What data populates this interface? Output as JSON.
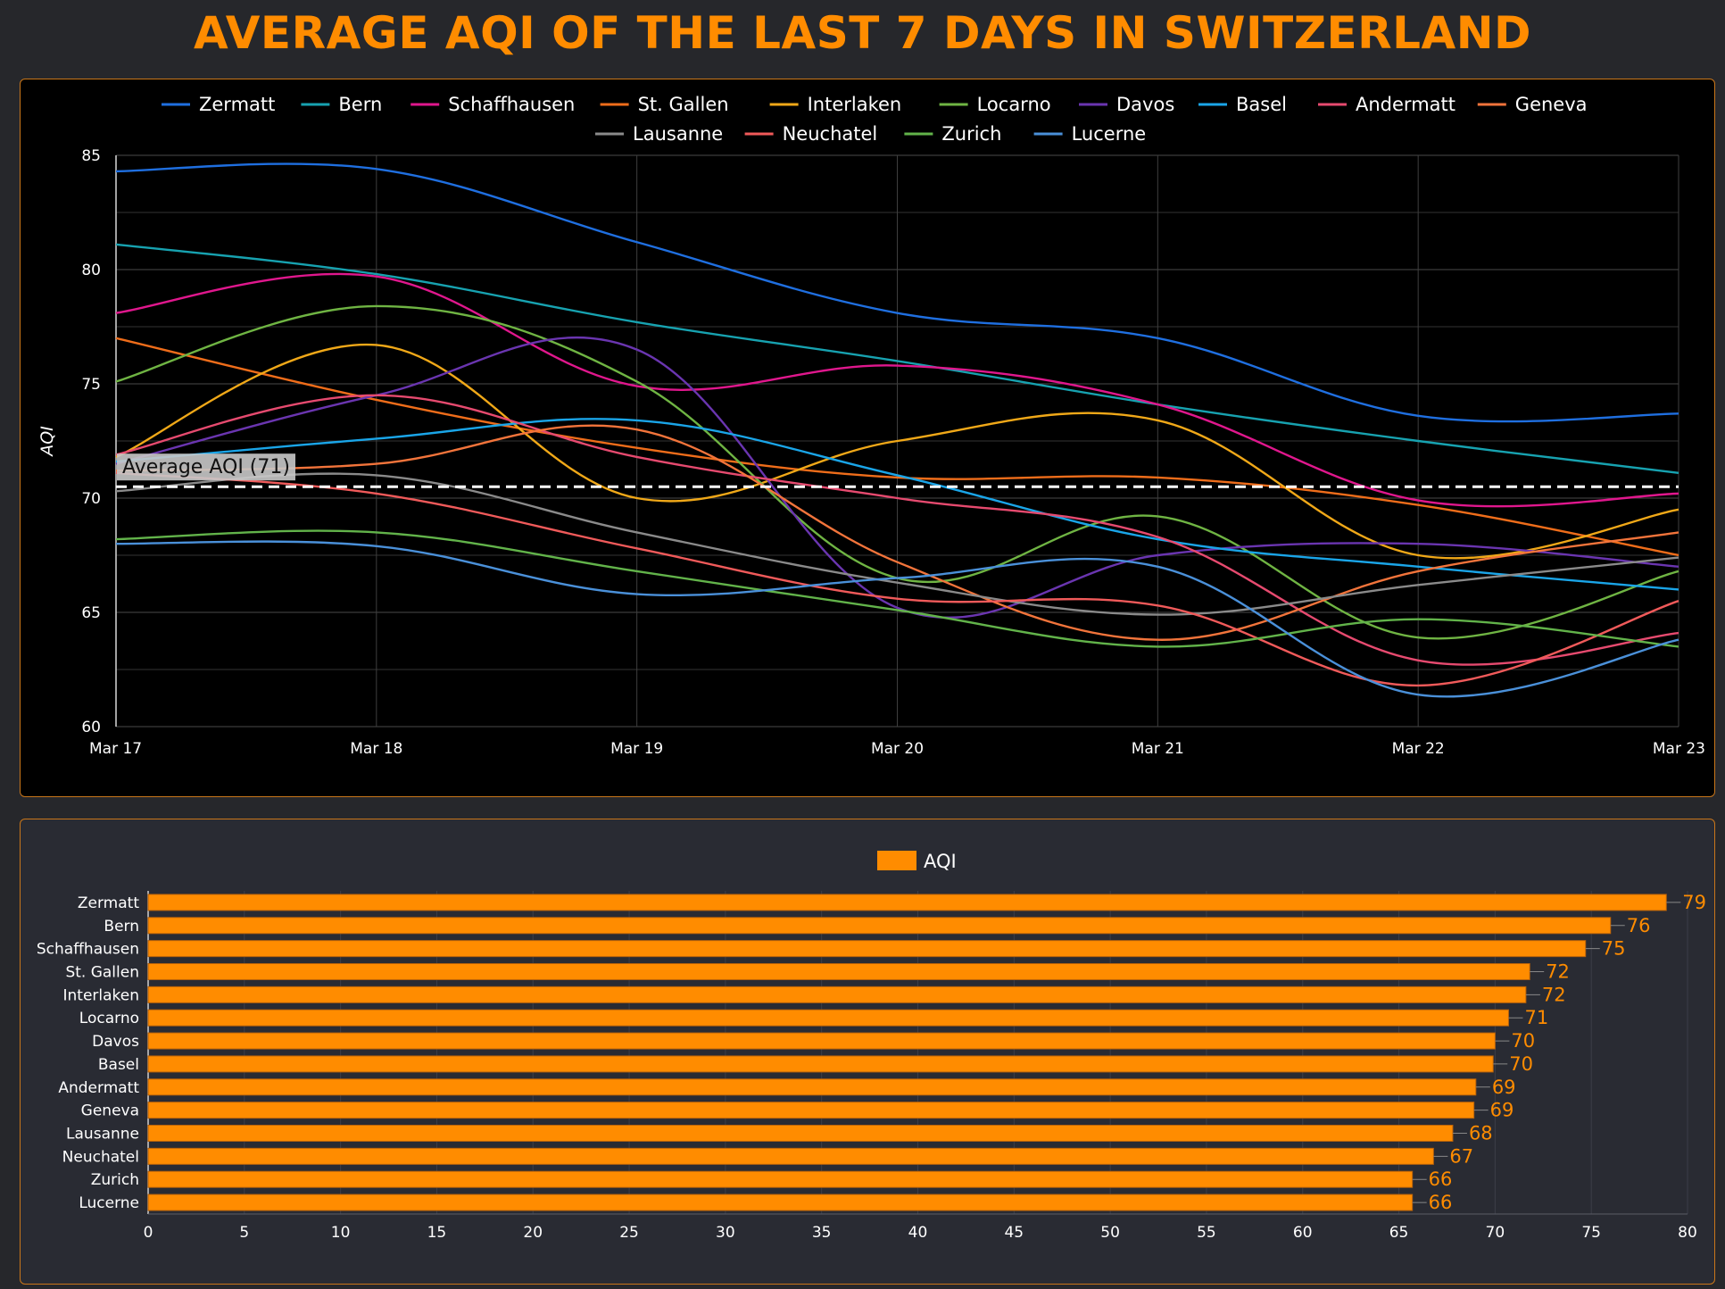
{
  "title": "AVERAGE AQI OF THE LAST 7 DAYS IN SWITZERLAND",
  "colors": {
    "accent": "#ff8c00",
    "page_bg": "#26272b",
    "line_panel_bg": "#000000",
    "bar_panel_bg": "#292b33"
  },
  "chart_data": [
    {
      "type": "line",
      "ylabel": "AQI",
      "xlabel": "",
      "ylim": [
        60,
        85
      ],
      "yticks": [
        60,
        65,
        70,
        75,
        80,
        85
      ],
      "categories": [
        "Mar 17",
        "Mar 18",
        "Mar 19",
        "Mar 20",
        "Mar 21",
        "Mar 22",
        "Mar 23"
      ],
      "grid": true,
      "smooth": true,
      "legend_position": "top-center",
      "reference_line": {
        "label": "Average AQI (71)",
        "value": 70.5,
        "color": "#ffffff",
        "dashed": true
      },
      "series": [
        {
          "name": "Zermatt",
          "color": "#1f6fe0",
          "values": [
            84.3,
            84.4,
            81.2,
            78.1,
            77.0,
            73.6,
            73.7
          ]
        },
        {
          "name": "Bern",
          "color": "#17a2b0",
          "values": [
            81.1,
            79.8,
            77.7,
            76.0,
            74.1,
            72.5,
            71.1
          ]
        },
        {
          "name": "Schaffhausen",
          "color": "#e0178d",
          "values": [
            78.1,
            79.7,
            74.9,
            75.8,
            74.1,
            69.9,
            70.2
          ]
        },
        {
          "name": "St. Gallen",
          "color": "#ef6d1a",
          "values": [
            77.0,
            74.3,
            72.2,
            70.9,
            70.9,
            69.7,
            67.5
          ]
        },
        {
          "name": "Interlaken",
          "color": "#f0a818",
          "values": [
            71.8,
            76.7,
            70.0,
            72.5,
            73.4,
            67.5,
            69.5
          ]
        },
        {
          "name": "Locarno",
          "color": "#6fb443",
          "values": [
            75.1,
            78.4,
            75.1,
            66.5,
            69.2,
            63.9,
            66.8
          ]
        },
        {
          "name": "Davos",
          "color": "#6a35b0",
          "values": [
            71.5,
            74.5,
            76.5,
            65.2,
            67.5,
            68.0,
            67.0
          ]
        },
        {
          "name": "Basel",
          "color": "#1aa5e8",
          "values": [
            71.6,
            72.6,
            73.4,
            71.0,
            68.2,
            67.0,
            66.0
          ]
        },
        {
          "name": "Andermatt",
          "color": "#e64a6f",
          "values": [
            71.9,
            74.5,
            71.8,
            70.0,
            68.3,
            62.9,
            64.1
          ]
        },
        {
          "name": "Geneva",
          "color": "#f2743b",
          "values": [
            71.2,
            71.5,
            73.0,
            67.2,
            63.8,
            66.8,
            68.5
          ]
        },
        {
          "name": "Lausanne",
          "color": "#8a8a8a",
          "values": [
            70.3,
            71.0,
            68.5,
            66.3,
            64.9,
            66.2,
            67.4
          ]
        },
        {
          "name": "Neuchatel",
          "color": "#f05a5a",
          "values": [
            71.1,
            70.2,
            67.8,
            65.6,
            65.3,
            61.8,
            65.5
          ]
        },
        {
          "name": "Zurich",
          "color": "#62b34a",
          "values": [
            68.2,
            68.5,
            66.8,
            65.1,
            63.5,
            64.7,
            63.5
          ]
        },
        {
          "name": "Lucerne",
          "color": "#4a90d9",
          "values": [
            68.0,
            67.9,
            65.8,
            66.5,
            67.0,
            61.4,
            63.8
          ]
        }
      ]
    },
    {
      "type": "bar",
      "orientation": "horizontal",
      "legend": [
        "AQI"
      ],
      "legend_position": "top-center",
      "bar_color": "#ff8c00",
      "xlim": [
        0,
        80
      ],
      "xticks": [
        0,
        5,
        10,
        15,
        20,
        25,
        30,
        35,
        40,
        45,
        50,
        55,
        60,
        65,
        70,
        75,
        80
      ],
      "categories": [
        "Zermatt",
        "Bern",
        "Schaffhausen",
        "St. Gallen",
        "Interlaken",
        "Locarno",
        "Davos",
        "Basel",
        "Andermatt",
        "Geneva",
        "Lausanne",
        "Neuchatel",
        "Zurich",
        "Lucerne"
      ],
      "values": [
        78.9,
        76.0,
        74.7,
        71.8,
        71.6,
        70.7,
        70.0,
        69.9,
        69.0,
        68.9,
        67.8,
        66.8,
        65.7,
        65.7
      ],
      "data_labels": [
        "79",
        "76",
        "75",
        "72",
        "72",
        "71",
        "70",
        "70",
        "69",
        "69",
        "68",
        "67",
        "66",
        "66"
      ]
    }
  ]
}
